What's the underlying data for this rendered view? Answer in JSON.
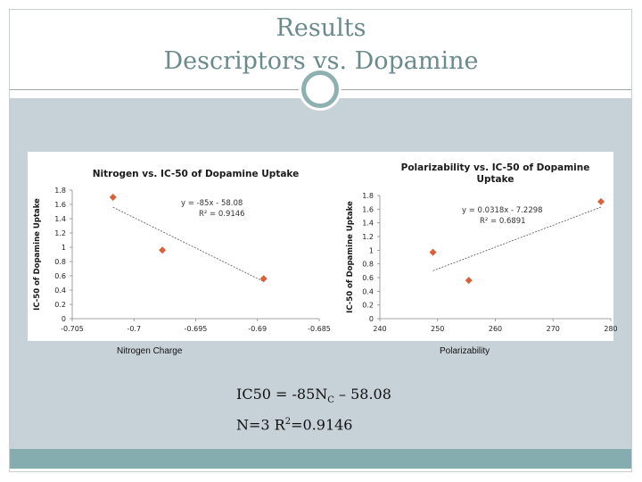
{
  "slide": {
    "title_line1": "Results",
    "title_line2": "Descriptors vs. Dopamine",
    "accent_color": "#8fb0b1",
    "body_background": "#c7d1d8",
    "footer_color": "#85acaf"
  },
  "equation": {
    "line1_prefix": "IC50 = -85N",
    "line1_sub": "C",
    "line1_suffix": " – 58.08",
    "line2_prefix": "N=3   R",
    "line2_sup": "2",
    "line2_suffix": "=0.9146"
  },
  "chart_data": [
    {
      "type": "scatter",
      "title": "Nitrogen vs. IC-50 of Dopamine Uptake",
      "xlabel": "Nitrogen Charge",
      "ylabel": "IC-50 of Dopamine Uptake",
      "xlim": [
        -0.705,
        -0.685
      ],
      "ylim": [
        0,
        1.8
      ],
      "xticks": [
        -0.705,
        -0.7,
        -0.695,
        -0.69,
        -0.685
      ],
      "xtick_labels": [
        "-0.705",
        "-0.7",
        "-0.695",
        "-0.69",
        "-0.685"
      ],
      "yticks": [
        0,
        0.2,
        0.4,
        0.6,
        0.8,
        1,
        1.2,
        1.4,
        1.6,
        1.8
      ],
      "ytick_labels": [
        "0",
        "0.2",
        "0.4",
        "0.6",
        "0.8",
        "1",
        "1.2",
        "1.4",
        "1.6",
        "1.8"
      ],
      "grid": false,
      "marker_color": "#d9603b",
      "points": [
        {
          "x": -0.7017,
          "y": 1.7
        },
        {
          "x": -0.6977,
          "y": 0.96
        },
        {
          "x": -0.6895,
          "y": 0.56
        }
      ],
      "trendline": {
        "x1": -0.7017,
        "y1": 1.56,
        "x2": -0.6895,
        "y2": 0.52
      },
      "annotation_line1": "y = -85x - 58.08",
      "annotation_line2": "R² = 0.9146"
    },
    {
      "type": "scatter",
      "title_line1": "Polarizability vs. IC-50 of Dopamine",
      "title_line2": "Uptake",
      "xlabel": "Polarizability",
      "ylabel": "IC-50 of Dopamine Uptake",
      "xlim": [
        240,
        280
      ],
      "ylim": [
        0,
        1.8
      ],
      "xticks": [
        240,
        250,
        260,
        270,
        280
      ],
      "xtick_labels": [
        "240",
        "250",
        "260",
        "270",
        "280"
      ],
      "yticks": [
        0,
        0.2,
        0.4,
        0.6,
        0.8,
        1,
        1.2,
        1.4,
        1.6,
        1.8
      ],
      "ytick_labels": [
        "0",
        "0.2",
        "0.4",
        "0.6",
        "0.8",
        "1",
        "1.2",
        "1.4",
        "1.6",
        "1.8"
      ],
      "grid": false,
      "marker_color": "#d9603b",
      "points": [
        {
          "x": 249.2,
          "y": 0.97
        },
        {
          "x": 255.4,
          "y": 0.56
        },
        {
          "x": 278.3,
          "y": 1.71
        }
      ],
      "trendline": {
        "x1": 249.2,
        "y1": 0.7,
        "x2": 278.3,
        "y2": 1.63
      },
      "annotation_line1": "y = 0.0318x - 7.2298",
      "annotation_line2": "R² = 0.6891"
    }
  ]
}
